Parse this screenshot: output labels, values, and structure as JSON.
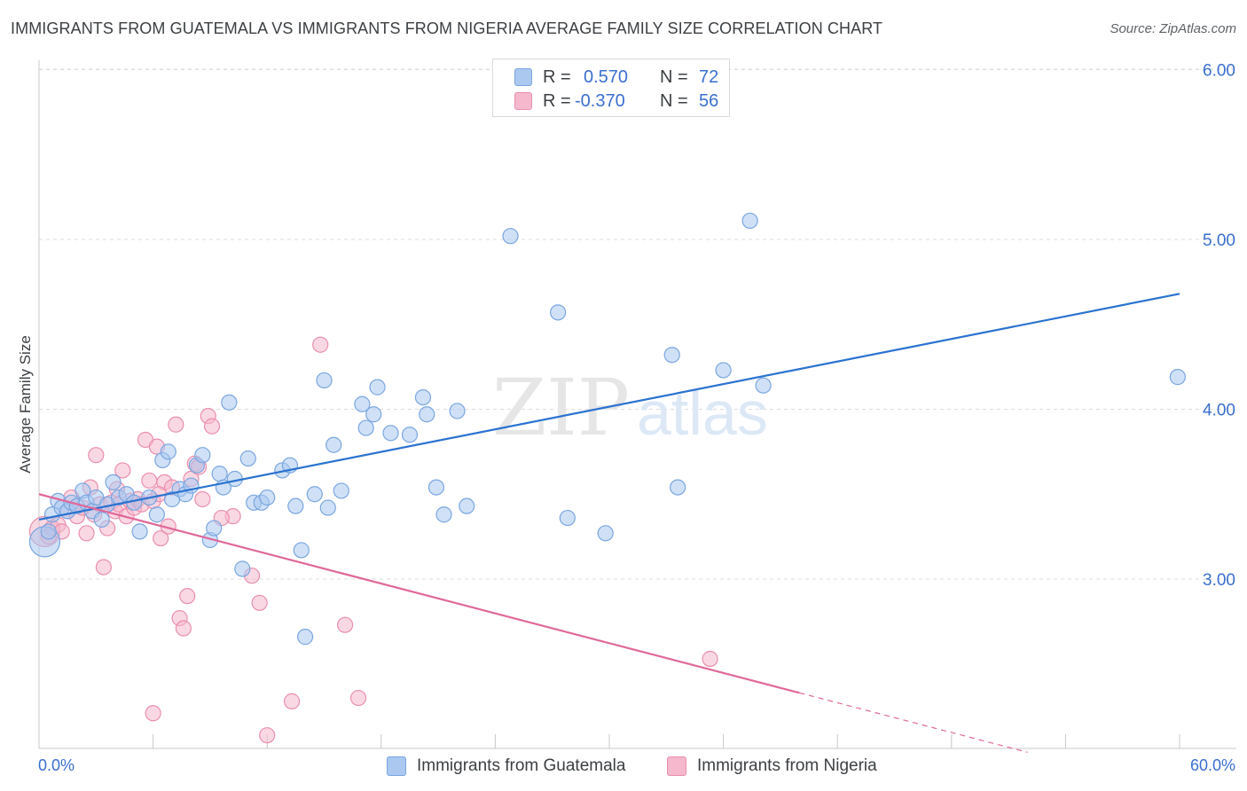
{
  "title": "IMMIGRANTS FROM GUATEMALA VS IMMIGRANTS FROM NIGERIA AVERAGE FAMILY SIZE CORRELATION CHART",
  "source": "Source: ZipAtlas.com",
  "watermark": {
    "zip": "ZIP",
    "atlas": "atlas"
  },
  "legend": {
    "r_label": "R =",
    "n_label": "N =",
    "guatemala": {
      "r": "0.570",
      "n": "72"
    },
    "nigeria": {
      "r": "-0.370",
      "n": "56"
    }
  },
  "colors": {
    "guatemala_fill": "#aac8f0",
    "guatemala_stroke": "#7aa6e0",
    "guatemala_line": "#2a72d0",
    "nigeria_fill": "#f5b8cc",
    "nigeria_stroke": "#ea8fae",
    "nigeria_line": "#e0689a",
    "axis_tick_text": "#3a6fcf",
    "grid": "#dcdcdc"
  },
  "chart_data": {
    "type": "scatter",
    "title": "IMMIGRANTS FROM GUATEMALA VS IMMIGRANTS FROM NIGERIA AVERAGE FAMILY SIZE CORRELATION CHART",
    "xlabel": "",
    "ylabel": "Average Family Size",
    "xlim": [
      0,
      60
    ],
    "ylim": [
      2.0,
      6.1
    ],
    "x_tick_labels": {
      "min": "0.0%",
      "max": "60.0%"
    },
    "y_ticks": [
      3.0,
      4.0,
      5.0,
      6.0
    ],
    "y_tick_labels": [
      "3.00",
      "4.00",
      "5.00",
      "6.00"
    ],
    "grid": true,
    "series": [
      {
        "name": "Immigrants from Guatemala",
        "trend": {
          "x": [
            0,
            60
          ],
          "y": [
            3.35,
            4.68
          ]
        },
        "points": [
          [
            0.3,
            3.22
          ],
          [
            0.5,
            3.28
          ],
          [
            0.7,
            3.38
          ],
          [
            1.0,
            3.46
          ],
          [
            1.2,
            3.42
          ],
          [
            1.5,
            3.4
          ],
          [
            1.7,
            3.45
          ],
          [
            2.0,
            3.43
          ],
          [
            2.3,
            3.52
          ],
          [
            2.5,
            3.45
          ],
          [
            2.8,
            3.4
          ],
          [
            3.0,
            3.48
          ],
          [
            3.3,
            3.35
          ],
          [
            3.6,
            3.44
          ],
          [
            3.9,
            3.57
          ],
          [
            4.2,
            3.48
          ],
          [
            4.6,
            3.5
          ],
          [
            5.0,
            3.45
          ],
          [
            5.3,
            3.28
          ],
          [
            5.8,
            3.48
          ],
          [
            6.2,
            3.38
          ],
          [
            6.5,
            3.7
          ],
          [
            6.8,
            3.75
          ],
          [
            7.0,
            3.47
          ],
          [
            7.4,
            3.53
          ],
          [
            7.7,
            3.5
          ],
          [
            8.0,
            3.55
          ],
          [
            8.3,
            3.67
          ],
          [
            8.6,
            3.73
          ],
          [
            9.0,
            3.23
          ],
          [
            9.2,
            3.3
          ],
          [
            9.5,
            3.62
          ],
          [
            9.7,
            3.54
          ],
          [
            10.0,
            4.04
          ],
          [
            10.3,
            3.59
          ],
          [
            10.7,
            3.06
          ],
          [
            11.0,
            3.71
          ],
          [
            11.3,
            3.45
          ],
          [
            11.7,
            3.45
          ],
          [
            12.0,
            3.48
          ],
          [
            12.8,
            3.64
          ],
          [
            13.2,
            3.67
          ],
          [
            13.5,
            3.43
          ],
          [
            13.8,
            3.17
          ],
          [
            14.0,
            2.66
          ],
          [
            14.5,
            3.5
          ],
          [
            15.0,
            4.17
          ],
          [
            15.2,
            3.42
          ],
          [
            15.5,
            3.79
          ],
          [
            15.9,
            3.52
          ],
          [
            17.0,
            4.03
          ],
          [
            17.2,
            3.89
          ],
          [
            17.6,
            3.97
          ],
          [
            17.8,
            4.13
          ],
          [
            18.5,
            3.86
          ],
          [
            19.5,
            3.85
          ],
          [
            20.2,
            4.07
          ],
          [
            20.4,
            3.97
          ],
          [
            20.9,
            3.54
          ],
          [
            21.3,
            3.38
          ],
          [
            22.0,
            3.99
          ],
          [
            22.5,
            3.43
          ],
          [
            24.8,
            5.02
          ],
          [
            27.3,
            4.57
          ],
          [
            27.8,
            3.36
          ],
          [
            29.8,
            3.27
          ],
          [
            33.3,
            4.32
          ],
          [
            33.6,
            3.54
          ],
          [
            36.0,
            4.23
          ],
          [
            38.1,
            4.14
          ],
          [
            37.4,
            5.11
          ],
          [
            59.9,
            4.19
          ]
        ]
      },
      {
        "name": "Immigrants from Nigeria",
        "trend": {
          "x": [
            0,
            40
          ],
          "y": [
            3.5,
            2.33
          ]
        },
        "trend_extension": {
          "x": [
            40,
            52
          ],
          "y": [
            2.33,
            1.98
          ]
        },
        "points": [
          [
            0.3,
            3.28
          ],
          [
            0.5,
            3.25
          ],
          [
            0.7,
            3.3
          ],
          [
            1.0,
            3.32
          ],
          [
            1.2,
            3.28
          ],
          [
            1.5,
            3.4
          ],
          [
            1.7,
            3.48
          ],
          [
            2.0,
            3.37
          ],
          [
            2.3,
            3.42
          ],
          [
            2.5,
            3.27
          ],
          [
            2.7,
            3.54
          ],
          [
            2.9,
            3.38
          ],
          [
            3.0,
            3.73
          ],
          [
            3.2,
            3.44
          ],
          [
            3.4,
            3.07
          ],
          [
            3.6,
            3.3
          ],
          [
            3.8,
            3.45
          ],
          [
            4.0,
            3.4
          ],
          [
            4.2,
            3.44
          ],
          [
            4.4,
            3.64
          ],
          [
            4.6,
            3.37
          ],
          [
            4.8,
            3.46
          ],
          [
            5.0,
            3.42
          ],
          [
            5.2,
            3.47
          ],
          [
            5.4,
            3.44
          ],
          [
            5.6,
            3.82
          ],
          [
            5.8,
            3.58
          ],
          [
            6.0,
            3.46
          ],
          [
            6.2,
            3.78
          ],
          [
            6.4,
            3.24
          ],
          [
            6.6,
            3.57
          ],
          [
            6.8,
            3.31
          ],
          [
            7.0,
            3.54
          ],
          [
            7.2,
            3.91
          ],
          [
            7.4,
            2.77
          ],
          [
            7.6,
            2.71
          ],
          [
            7.8,
            2.9
          ],
          [
            8.0,
            3.59
          ],
          [
            8.2,
            3.68
          ],
          [
            8.4,
            3.66
          ],
          [
            8.6,
            3.47
          ],
          [
            8.9,
            3.96
          ],
          [
            9.1,
            3.9
          ],
          [
            10.2,
            3.37
          ],
          [
            11.2,
            3.02
          ],
          [
            11.6,
            2.86
          ],
          [
            12.0,
            2.08
          ],
          [
            13.3,
            2.28
          ],
          [
            14.8,
            4.38
          ],
          [
            16.1,
            2.73
          ],
          [
            16.8,
            2.3
          ],
          [
            35.3,
            2.53
          ],
          [
            6.0,
            2.21
          ],
          [
            6.3,
            3.5
          ],
          [
            4.1,
            3.53
          ],
          [
            9.6,
            3.36
          ]
        ]
      }
    ]
  }
}
